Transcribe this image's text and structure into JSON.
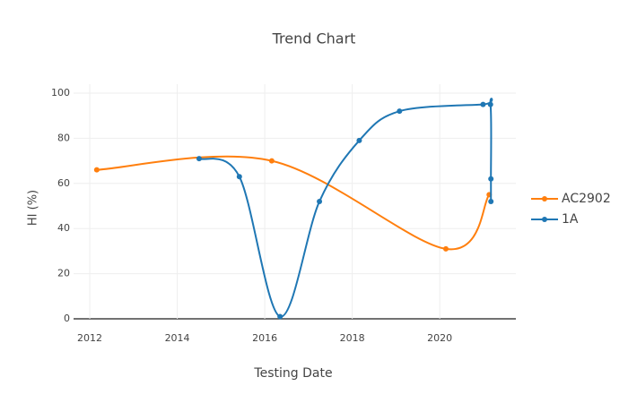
{
  "chart_data": {
    "type": "line",
    "title": "Trend Chart",
    "x_label": "Testing Date",
    "y_label": "HI (%)",
    "xlim": [
      2011.63,
      2021.74
    ],
    "xticks": [
      2012,
      2014,
      2016,
      2018,
      2020
    ],
    "ylim": [
      0,
      100
    ],
    "yticks": [
      0,
      20,
      40,
      60,
      80,
      100
    ],
    "grid": true,
    "smooth": true,
    "legend": "right",
    "series": [
      {
        "name": "AC2902",
        "color": "#ff7f0e",
        "x": [
          2012.16,
          2016.16,
          2020.14,
          2021.13
        ],
        "values": [
          66,
          70,
          31,
          55
        ]
      },
      {
        "name": "1A",
        "color": "#1f77b4",
        "x": [
          2014.5,
          2015.42,
          2016.35,
          2017.25,
          2018.16,
          2019.08,
          2020.99,
          2021.16,
          2021.17,
          2021.17
        ],
        "values": [
          71,
          63,
          1,
          52,
          79,
          92,
          95,
          95,
          62,
          52
        ]
      }
    ]
  }
}
